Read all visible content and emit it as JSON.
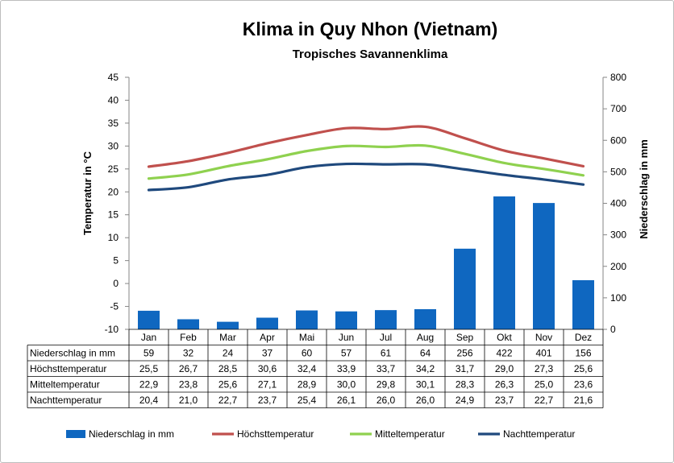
{
  "chart_data": {
    "type": "bar",
    "title": "Klima in Quy Nhon (Vietnam)",
    "subtitle": "Tropisches Savannenklima",
    "ylabel_left": "Temperatur in °C",
    "ylabel_right": "Niederschlag in mm",
    "ylim_left": [
      -10,
      45
    ],
    "ylim_right": [
      0,
      800
    ],
    "yticks_left": [
      "-10",
      "-5",
      "0",
      "5",
      "10",
      "15",
      "20",
      "25",
      "30",
      "35",
      "40",
      "45"
    ],
    "yticks_right": [
      "0",
      "100",
      "200",
      "300",
      "400",
      "500",
      "600",
      "700",
      "800"
    ],
    "grid": false,
    "legend_position": "bottom",
    "categories": [
      "Jan",
      "Feb",
      "Mar",
      "Apr",
      "Mai",
      "Jun",
      "Jul",
      "Aug",
      "Sep",
      "Okt",
      "Nov",
      "Dez"
    ],
    "series": [
      {
        "name": "Niederschlag in mm",
        "type": "bar",
        "axis": "right",
        "color": "#0f67c0",
        "values": [
          59,
          32,
          24,
          37,
          60,
          57,
          61,
          64,
          256,
          422,
          401,
          156
        ],
        "labels": [
          "59",
          "32",
          "24",
          "37",
          "60",
          "57",
          "61",
          "64",
          "256",
          "422",
          "401",
          "156"
        ]
      },
      {
        "name": "Höchsttemperatur",
        "type": "line",
        "axis": "left",
        "color": "#c0504d",
        "values": [
          25.5,
          26.7,
          28.5,
          30.6,
          32.4,
          33.9,
          33.7,
          34.2,
          31.7,
          29.0,
          27.3,
          25.6
        ],
        "labels": [
          "25,5",
          "26,7",
          "28,5",
          "30,6",
          "32,4",
          "33,9",
          "33,7",
          "34,2",
          "31,7",
          "29,0",
          "27,3",
          "25,6"
        ]
      },
      {
        "name": "Mitteltemperatur",
        "type": "line",
        "axis": "left",
        "color": "#8fd14f",
        "values": [
          22.9,
          23.8,
          25.6,
          27.1,
          28.9,
          30.0,
          29.8,
          30.1,
          28.3,
          26.3,
          25.0,
          23.6
        ],
        "labels": [
          "22,9",
          "23,8",
          "25,6",
          "27,1",
          "28,9",
          "30,0",
          "29,8",
          "30,1",
          "28,3",
          "26,3",
          "25,0",
          "23,6"
        ]
      },
      {
        "name": "Nachttemperatur",
        "type": "line",
        "axis": "left",
        "color": "#1f497d",
        "values": [
          20.4,
          21.0,
          22.7,
          23.7,
          25.4,
          26.1,
          26.0,
          26.0,
          24.9,
          23.7,
          22.7,
          21.6
        ],
        "labels": [
          "20,4",
          "21,0",
          "22,7",
          "23,7",
          "25,4",
          "26,1",
          "26,0",
          "26,0",
          "24,9",
          "23,7",
          "22,7",
          "21,6"
        ]
      }
    ]
  }
}
